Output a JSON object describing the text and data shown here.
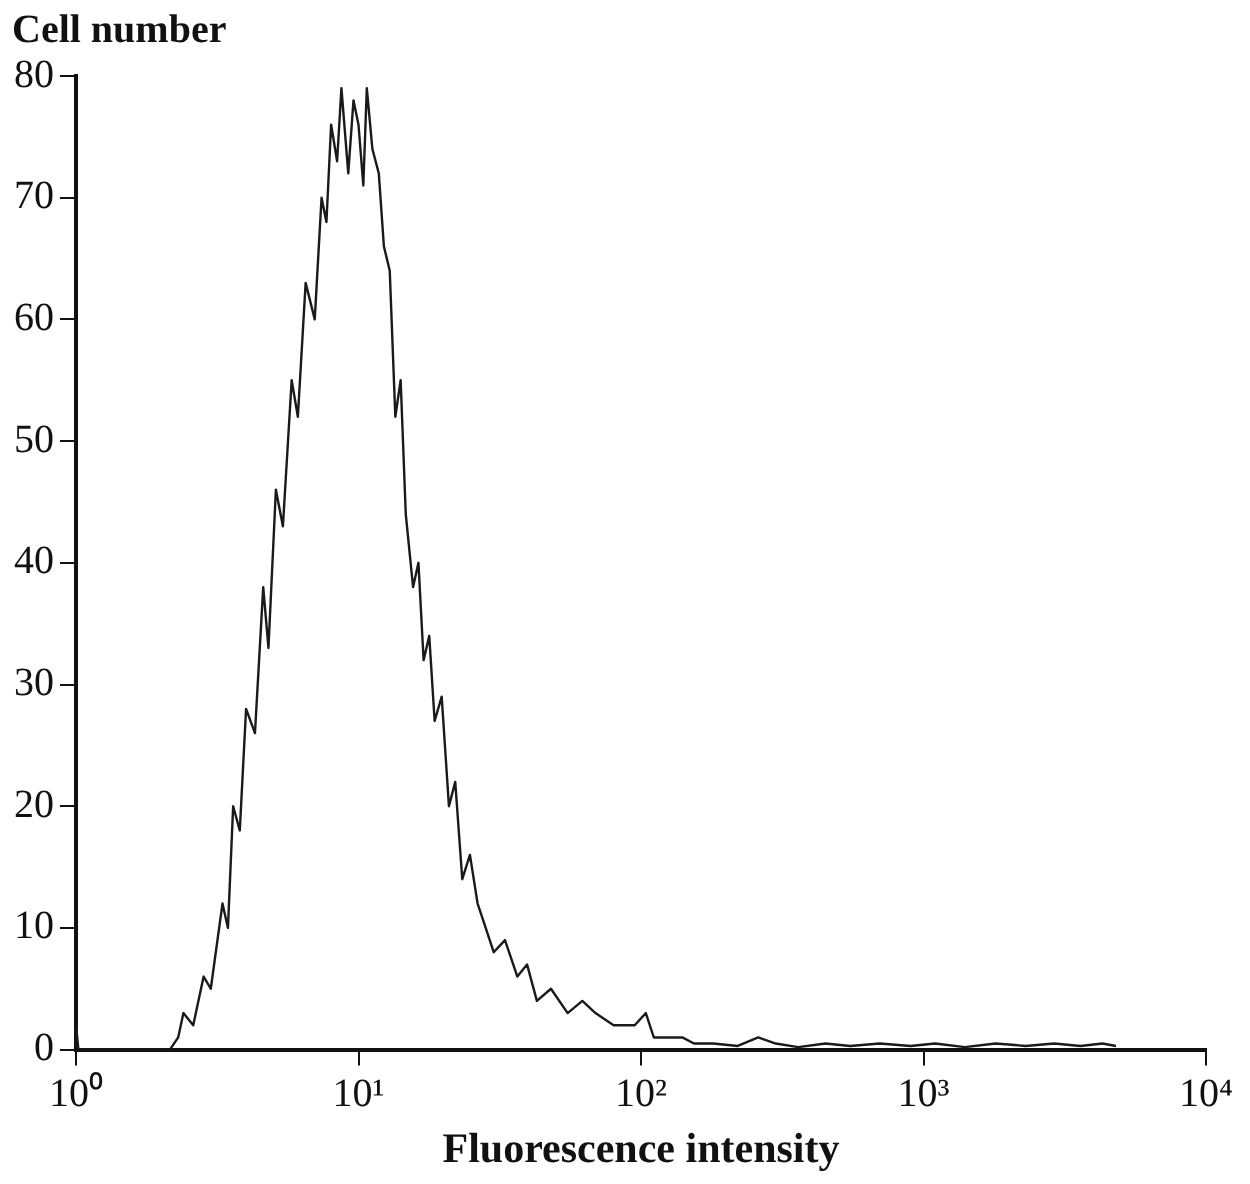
{
  "chart_data": {
    "type": "line",
    "xlabel": "Fluorescence intensity",
    "ylabel": "Cell number",
    "log": "x",
    "grid": false,
    "legend": false,
    "marker": "none",
    "line_style": "solid",
    "xlim": [
      1,
      10000
    ],
    "xticks": [
      {
        "value": 1,
        "label": "10⁰"
      },
      {
        "value": 10,
        "label": "10¹"
      },
      {
        "value": 100,
        "label": "10²"
      },
      {
        "value": 1000,
        "label": "10³"
      },
      {
        "value": 10000,
        "label": "10⁴"
      }
    ],
    "ylim": [
      0,
      80
    ],
    "yticks": [
      0,
      10,
      20,
      30,
      40,
      50,
      60,
      70,
      80
    ],
    "series": [
      {
        "color": "#1a1a1a",
        "x": [
          1,
          1.02,
          1.05,
          1.5,
          2.15,
          2.3,
          2.4,
          2.6,
          2.83,
          3.0,
          3.3,
          3.45,
          3.6,
          3.8,
          4.0,
          4.3,
          4.6,
          4.8,
          5.1,
          5.4,
          5.8,
          6.1,
          6.5,
          7.0,
          7.4,
          7.7,
          8.0,
          8.4,
          8.7,
          9.2,
          9.6,
          10,
          10.4,
          10.7,
          11.2,
          11.8,
          12.3,
          12.9,
          13.5,
          14.1,
          14.7,
          15.6,
          16.3,
          17,
          17.8,
          18.6,
          19.7,
          20.9,
          22,
          23.3,
          24.8,
          26.4,
          28.2,
          30.1,
          33,
          36.5,
          39.5,
          42.8,
          48,
          55,
          62,
          69,
          80,
          95,
          104,
          111,
          125,
          140,
          154,
          180,
          220,
          260,
          300,
          360,
          450,
          550,
          700,
          900,
          1100,
          1400,
          1800,
          2300,
          2900,
          3600,
          4300,
          4800
        ],
        "values": [
          2,
          0,
          0,
          0,
          0,
          1,
          3,
          2,
          6,
          5,
          12,
          10,
          20,
          18,
          28,
          26,
          38,
          33,
          46,
          43,
          55,
          52,
          63,
          60,
          70,
          68,
          76,
          73,
          79,
          72,
          78,
          76,
          71,
          79,
          74,
          72,
          66,
          64,
          52,
          55,
          44,
          38,
          40,
          32,
          34,
          27,
          29,
          20,
          22,
          14,
          16,
          12,
          10,
          8,
          9,
          6,
          7,
          4,
          5,
          3,
          4,
          3,
          2,
          2,
          3,
          1,
          1,
          1,
          0.5,
          0.5,
          0.3,
          1,
          0.5,
          0.2,
          0.5,
          0.3,
          0.5,
          0.3,
          0.5,
          0.2,
          0.5,
          0.3,
          0.5,
          0.3,
          0.5,
          0.3
        ]
      }
    ]
  }
}
